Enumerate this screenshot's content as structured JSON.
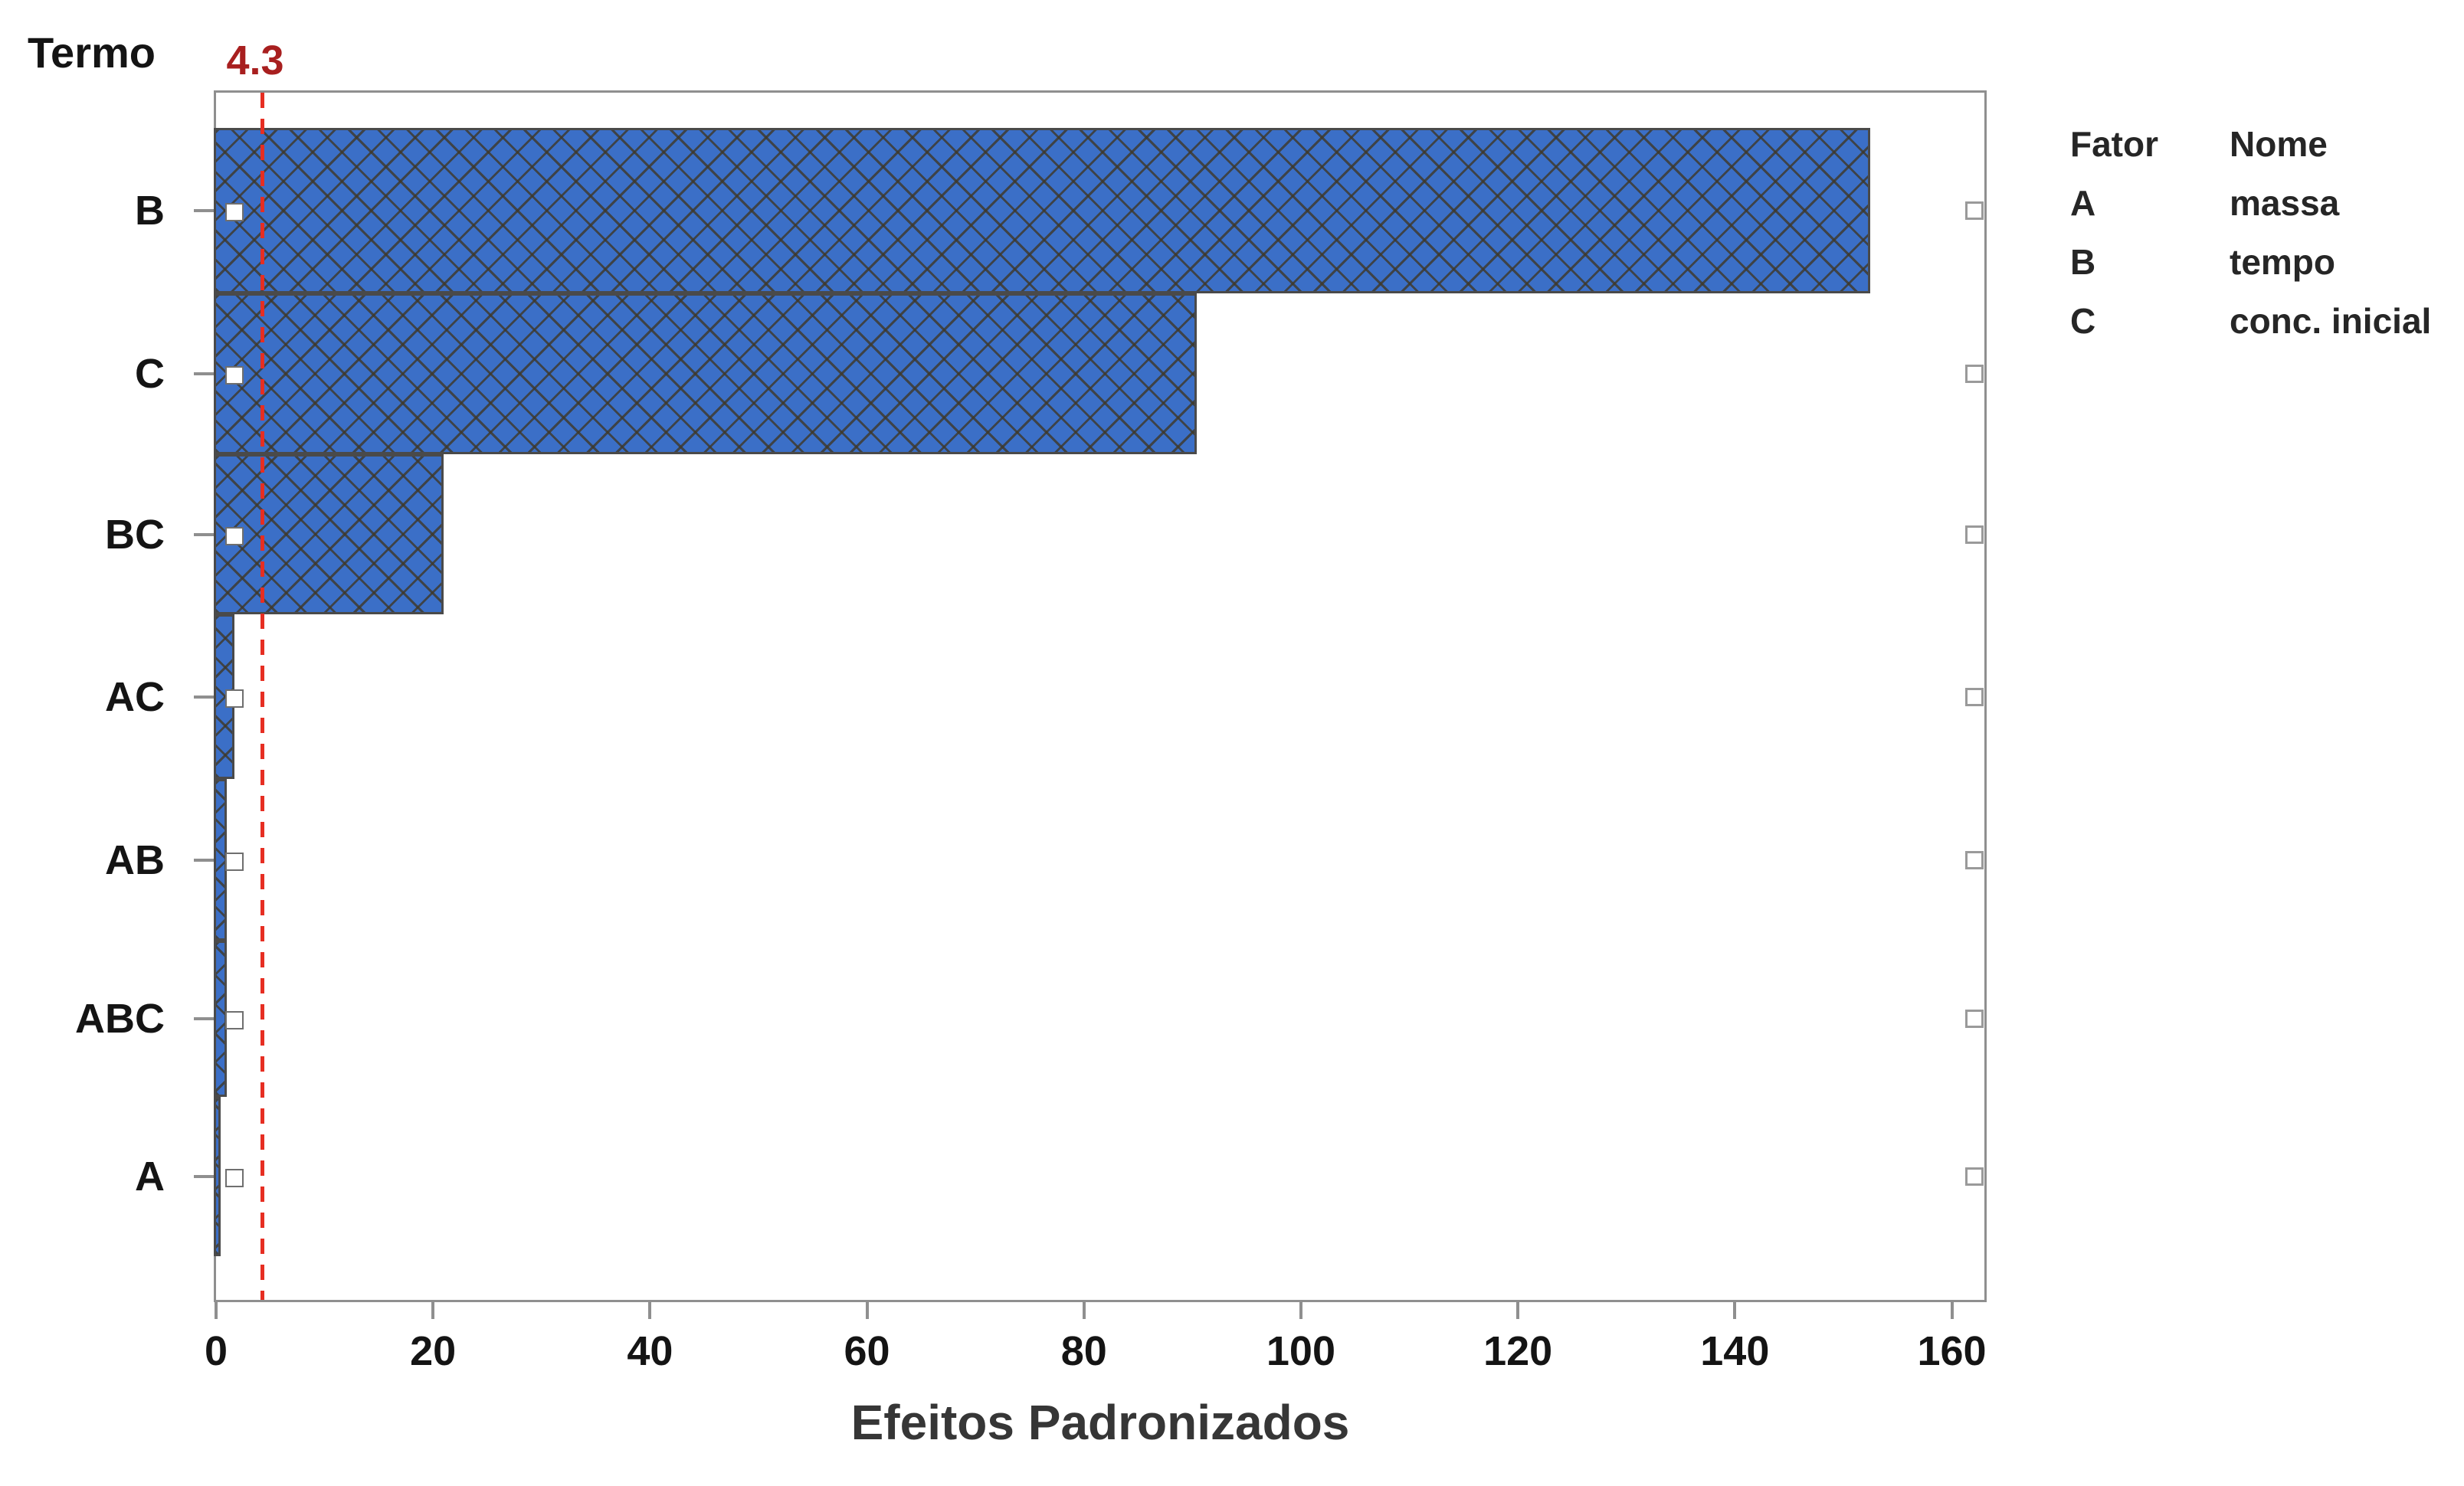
{
  "figure": {
    "y_axis_title": "Termo",
    "x_axis_title": "Efeitos Padronizados"
  },
  "chart_data": {
    "type": "bar",
    "orientation": "horizontal",
    "title": "",
    "xlabel": "Efeitos Padronizados",
    "ylabel": "Termo",
    "categories": [
      "B",
      "C",
      "BC",
      "AC",
      "AB",
      "ABC",
      "A"
    ],
    "values": [
      152.5,
      90.4,
      21.0,
      1.7,
      1.0,
      1.0,
      0.4
    ],
    "xlim": [
      0,
      163
    ],
    "x_ticks": [
      0,
      20,
      40,
      60,
      80,
      100,
      120,
      140,
      160
    ],
    "grid": false,
    "bar_color": "#3b6fc7",
    "bar_hatch": "diagonal-crosshatch",
    "bar_border_color": "#4a4a4a",
    "reference_line": {
      "value": 4.3,
      "label": "4.3",
      "style": "dashed",
      "color": "#e62e22",
      "label_color": "#a81f1f"
    },
    "legend": {
      "position": "right",
      "columns": [
        "Fator",
        "Nome"
      ],
      "rows": [
        {
          "fator": "A",
          "nome": "massa"
        },
        {
          "fator": "B",
          "nome": "tempo"
        },
        {
          "fator": "C",
          "nome": "conc. inicial"
        }
      ]
    },
    "selection_handles": true
  }
}
